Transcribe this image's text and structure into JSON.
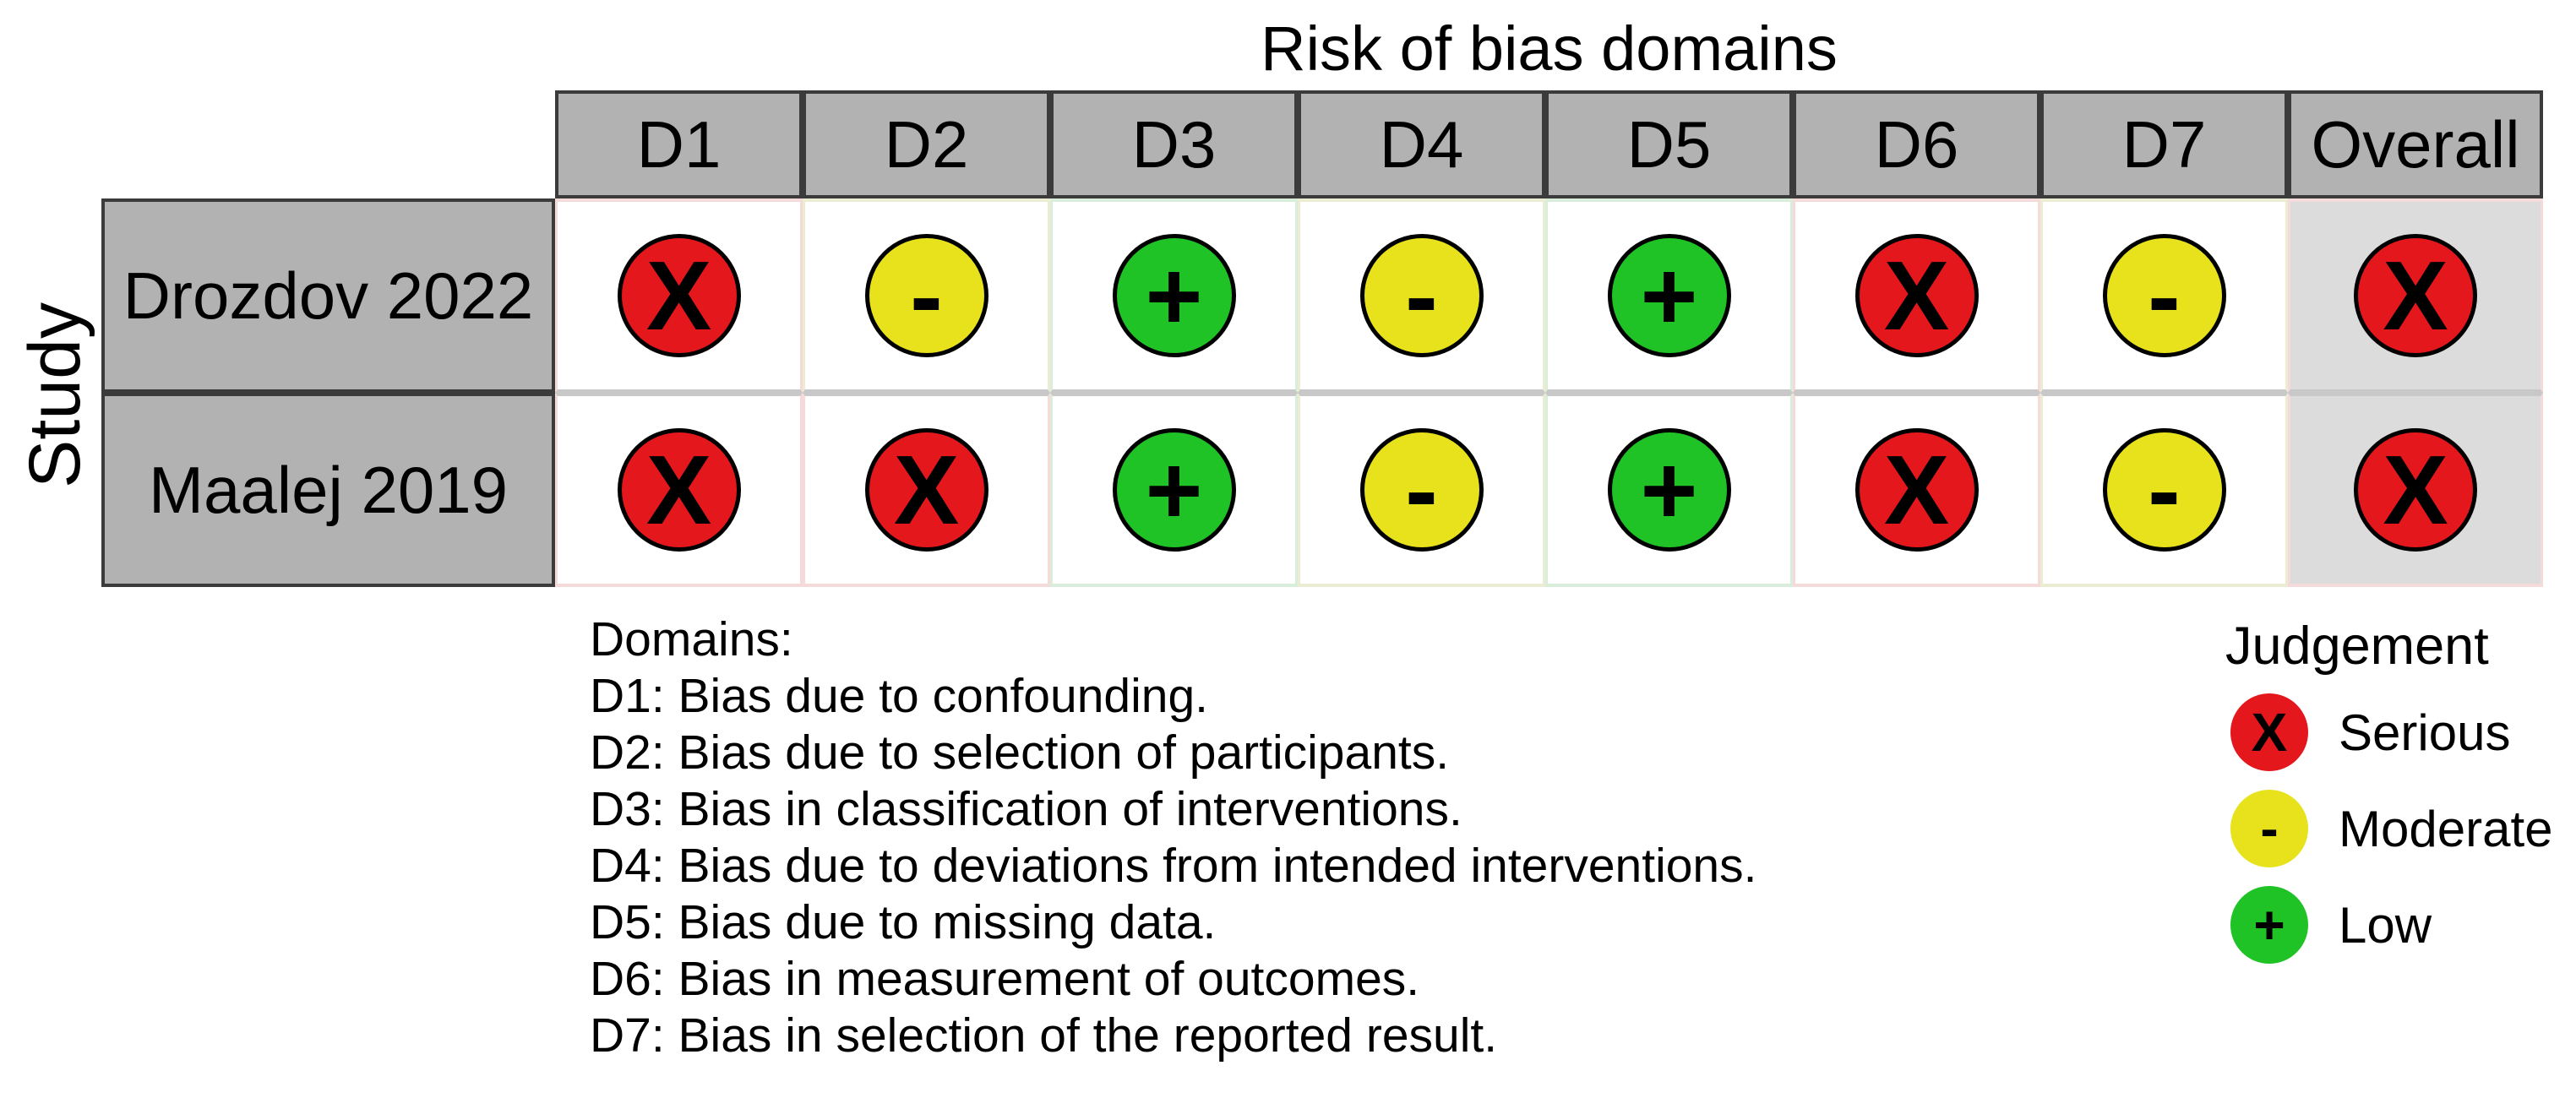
{
  "chart_data": {
    "type": "table",
    "title": "Risk of bias domains",
    "row_axis_label": "Study",
    "legend_title": "Judgement",
    "columns": [
      "D1",
      "D2",
      "D3",
      "D4",
      "D5",
      "D6",
      "D7",
      "Overall"
    ],
    "rows": [
      {
        "study": "Drozdov 2022",
        "judgements": [
          "serious",
          "moderate",
          "low",
          "moderate",
          "low",
          "serious",
          "moderate",
          "serious"
        ]
      },
      {
        "study": "Maalej 2019",
        "judgements": [
          "serious",
          "serious",
          "low",
          "moderate",
          "low",
          "serious",
          "moderate",
          "serious"
        ]
      }
    ],
    "judgements": {
      "serious": {
        "symbol": "X",
        "label": "Serious",
        "color": "#e3171c",
        "tint": "#f5dada"
      },
      "moderate": {
        "symbol": "-",
        "label": "Moderate",
        "color": "#e7e21c",
        "tint": "#ececd2"
      },
      "low": {
        "symbol": "+",
        "label": "Low",
        "color": "#1fc325",
        "tint": "#d9eeda"
      }
    },
    "legend_order": [
      "serious",
      "moderate",
      "low"
    ],
    "domains_note": [
      "Domains:",
      "D1: Bias due to confounding.",
      "D2: Bias due to selection of participants.",
      "D3: Bias in classification of interventions.",
      "D4: Bias due to deviations from intended interventions.",
      "D5: Bias due to missing data.",
      "D6: Bias in measurement of outcomes.",
      "D7: Bias in selection of the reported result."
    ]
  },
  "colors": {
    "header_bg": "#b2b2b2",
    "overall_cell_bg": "#dcdcdc",
    "grid_dark_border": "#3b3b3b",
    "row_separator": "#c8c8c8",
    "circle_outline": "#000000",
    "background": "#ffffff"
  }
}
